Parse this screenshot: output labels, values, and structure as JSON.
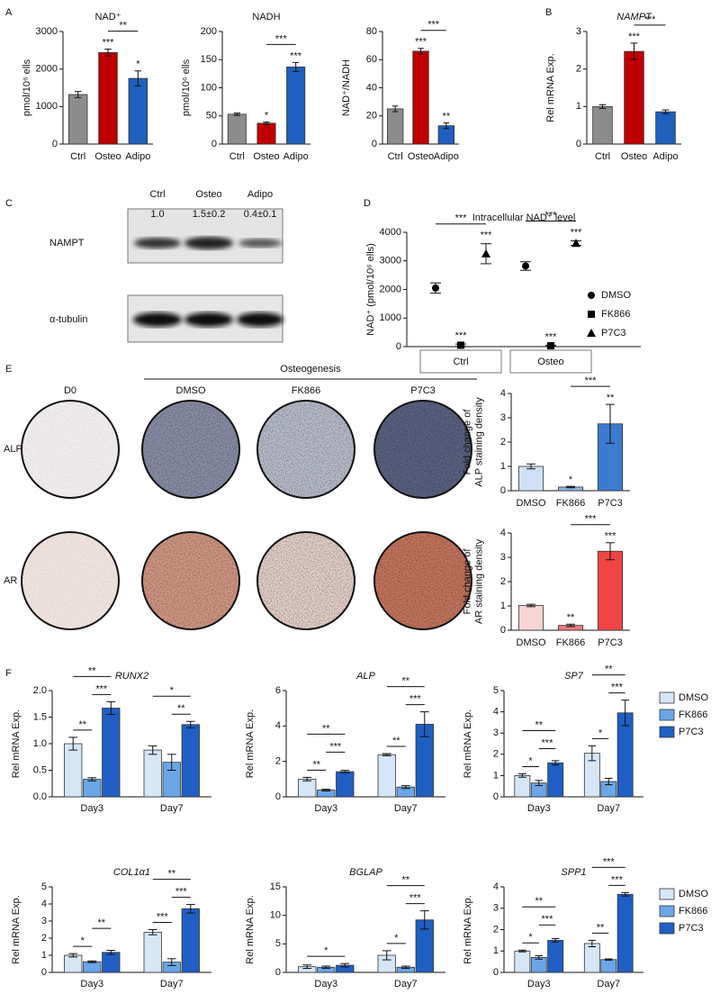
{
  "panels": [
    "A",
    "B",
    "C",
    "D",
    "E",
    "F"
  ],
  "blot": {
    "lanes": [
      "Ctrl",
      "Osteo",
      "Adipo"
    ],
    "quantification": [
      "1.0",
      "1.5±0.2",
      "0.4±0.1"
    ],
    "rows": [
      "NAMPT",
      "α-tubulin"
    ]
  },
  "staining": {
    "group_label": "Osteogenesis",
    "columns": [
      "D0",
      "DMSO",
      "FK866",
      "P7C3"
    ],
    "rows": [
      "ALP",
      "AR"
    ]
  },
  "chart_data": [
    {
      "type": "bar",
      "title": "NAD⁺",
      "y_label": [
        "pmol/10⁶ ells"
      ],
      "categories": [
        "Ctrl",
        "Osteo",
        "Adipo"
      ],
      "values": [
        1320,
        2440,
        1750
      ],
      "errors": [
        80,
        90,
        200
      ],
      "colors": [
        "#8c8c8c",
        "#c00000",
        "#1f5fbf"
      ],
      "ylim": [
        0,
        3000
      ],
      "yticks": [
        0,
        1000,
        2000,
        3000
      ],
      "annotations": [
        {
          "text": "***",
          "over": "Osteo"
        },
        {
          "text": "*",
          "over": "Adipo"
        },
        {
          "text": "**",
          "between": [
            "Osteo",
            "Adipo"
          ]
        }
      ]
    },
    {
      "type": "bar",
      "title": "NADH",
      "y_label": [
        "pmol/10⁶ ells"
      ],
      "categories": [
        "Ctrl",
        "Osteo",
        "Adipo"
      ],
      "values": [
        53,
        37,
        137
      ],
      "errors": [
        2,
        2,
        8
      ],
      "colors": [
        "#8c8c8c",
        "#c00000",
        "#1f5fbf"
      ],
      "ylim": [
        0,
        200
      ],
      "yticks": [
        0,
        50,
        100,
        150,
        200
      ],
      "annotations": [
        {
          "text": "*",
          "over": "Osteo"
        },
        {
          "text": "***",
          "over": "Adipo"
        },
        {
          "text": "***",
          "between": [
            "Osteo",
            "Adipo"
          ]
        }
      ]
    },
    {
      "type": "bar",
      "y_label": [
        "NAD⁺/NADH"
      ],
      "categories": [
        "Ctrl",
        "Osteo",
        "Adipo"
      ],
      "values": [
        25,
        66,
        13
      ],
      "errors": [
        2,
        2,
        2
      ],
      "colors": [
        "#8c8c8c",
        "#c00000",
        "#1f5fbf"
      ],
      "ylim": [
        0,
        80
      ],
      "yticks": [
        0,
        20,
        40,
        60,
        80
      ],
      "annotations": [
        {
          "text": "***",
          "over": "Osteo"
        },
        {
          "text": "**",
          "over": "Adipo"
        },
        {
          "text": "***",
          "between": [
            "Osteo",
            "Adipo"
          ]
        }
      ]
    },
    {
      "type": "bar",
      "title": "NAMPT",
      "italic_title": true,
      "y_label": [
        "Rel mRNA Exp."
      ],
      "categories": [
        "Ctrl",
        "Osteo",
        "Adipo"
      ],
      "values": [
        1.0,
        2.47,
        0.86
      ],
      "errors": [
        0.05,
        0.22,
        0.05
      ],
      "colors": [
        "#8c8c8c",
        "#c00000",
        "#1f5fbf"
      ],
      "ylim": [
        0,
        3
      ],
      "yticks": [
        0,
        1,
        2,
        3
      ],
      "annotations": [
        {
          "text": "***",
          "over": "Osteo"
        },
        {
          "text": "***",
          "between": [
            "Osteo",
            "Adipo"
          ]
        }
      ]
    },
    {
      "type": "dot",
      "title": "Intracellular NAD⁺ level",
      "y_label": [
        "NAD⁺ (pmol/10⁶ ells)"
      ],
      "categories": [
        "Ctrl",
        "Osteo"
      ],
      "ylim": [
        0,
        4000
      ],
      "yticks": [
        0,
        1000,
        2000,
        3000,
        4000
      ],
      "legend": "inside-right",
      "series": [
        {
          "name": "DMSO",
          "marker": "circle",
          "color": "#000000",
          "values": [
            2050,
            2820
          ],
          "errors": [
            180,
            150
          ]
        },
        {
          "name": "FK866",
          "marker": "square",
          "color": "#000000",
          "values": [
            50,
            30
          ],
          "errors": [
            40,
            20
          ]
        },
        {
          "name": "P7C3",
          "marker": "triangle",
          "color": "#000000",
          "values": [
            3250,
            3620
          ],
          "errors": [
            350,
            80
          ]
        }
      ],
      "annotations": [
        {
          "text": "***",
          "group": "Ctrl",
          "over": "FK866"
        },
        {
          "text": "***",
          "group": "Ctrl",
          "over": "P7C3"
        },
        {
          "text": "***",
          "group": "Ctrl",
          "between": [
            "DMSO",
            "P7C3"
          ]
        },
        {
          "text": "***",
          "group": "Osteo",
          "over": "FK866"
        },
        {
          "text": "***",
          "group": "Osteo",
          "over": "P7C3"
        },
        {
          "text": "***",
          "group": "Osteo",
          "between": [
            "DMSO",
            "P7C3"
          ]
        }
      ]
    },
    {
      "type": "bar",
      "y_label": [
        "Fold change of",
        "ALP staining density"
      ],
      "categories": [
        "DMSO",
        "FK866",
        "P7C3"
      ],
      "values": [
        1.0,
        0.15,
        2.75
      ],
      "errors": [
        0.1,
        0.03,
        0.8
      ],
      "colors": [
        "#cfe0f5",
        "#8db6ea",
        "#3d7bd1"
      ],
      "ylim": [
        0,
        4
      ],
      "yticks": [
        0,
        1,
        2,
        3,
        4
      ],
      "annotations": [
        {
          "text": "*",
          "over": "FK866"
        },
        {
          "text": "**",
          "over": "P7C3"
        },
        {
          "text": "***",
          "between": [
            "FK866",
            "P7C3"
          ]
        }
      ]
    },
    {
      "type": "bar",
      "y_label": [
        "Fold change of",
        "AR staining density"
      ],
      "categories": [
        "DMSO",
        "FK866",
        "P7C3"
      ],
      "values": [
        1.02,
        0.2,
        3.25
      ],
      "errors": [
        0.05,
        0.05,
        0.35
      ],
      "colors": [
        "#f9d4d4",
        "#f07a7a",
        "#f04545"
      ],
      "ylim": [
        0,
        4
      ],
      "yticks": [
        0,
        1,
        2,
        3,
        4
      ],
      "annotations": [
        {
          "text": "**",
          "over": "FK866"
        },
        {
          "text": "***",
          "over": "P7C3"
        },
        {
          "text": "***",
          "between": [
            "FK866",
            "P7C3"
          ]
        }
      ]
    },
    {
      "type": "grouped_bar",
      "title": "RUNX2",
      "italic_title": true,
      "y_label": [
        "Rel mRNA Exp."
      ],
      "categories": [
        "Day3",
        "Day7"
      ],
      "ylim": [
        0,
        2
      ],
      "yticks": [
        {
          "value": 0,
          "label": "0.0"
        },
        0.5,
        {
          "value": 1,
          "label": "1.0"
        },
        1.5,
        {
          "value": 2,
          "label": "2.0"
        }
      ],
      "series": [
        {
          "name": "DMSO",
          "color": "#d5e6f7",
          "values": [
            1.0,
            0.88
          ],
          "errors": [
            0.12,
            0.08
          ]
        },
        {
          "name": "FK866",
          "color": "#6aa6e8",
          "values": [
            0.33,
            0.65
          ],
          "errors": [
            0.03,
            0.15
          ]
        },
        {
          "name": "P7C3",
          "color": "#1f5fc4",
          "values": [
            1.67,
            1.36
          ],
          "errors": [
            0.12,
            0.06
          ]
        }
      ],
      "annotations": [
        {
          "text": "**",
          "group": "Day3",
          "between": [
            "DMSO",
            "FK866"
          ]
        },
        {
          "text": "***",
          "group": "Day3",
          "between": [
            "FK866",
            "P7C3"
          ]
        },
        {
          "text": "**",
          "group": "Day3",
          "between": [
            "DMSO",
            "P7C3"
          ]
        },
        {
          "text": "**",
          "group": "Day7",
          "between": [
            "FK866",
            "P7C3"
          ]
        },
        {
          "text": "*",
          "group": "Day7",
          "between": [
            "DMSO",
            "P7C3"
          ]
        }
      ]
    },
    {
      "type": "grouped_bar",
      "title": "ALP",
      "italic_title": true,
      "y_label": [
        "Rel mRNA Exp."
      ],
      "categories": [
        "Day3",
        "Day7"
      ],
      "ylim": [
        0,
        6
      ],
      "yticks": [
        0,
        2,
        4,
        6
      ],
      "series": [
        {
          "name": "DMSO",
          "color": "#d5e6f7",
          "values": [
            1.0,
            2.38
          ],
          "errors": [
            0.1,
            0.06
          ]
        },
        {
          "name": "FK866",
          "color": "#6aa6e8",
          "values": [
            0.38,
            0.55
          ],
          "errors": [
            0.05,
            0.08
          ]
        },
        {
          "name": "P7C3",
          "color": "#1f5fc4",
          "values": [
            1.42,
            4.1
          ],
          "errors": [
            0.07,
            0.7
          ]
        }
      ],
      "annotations": [
        {
          "text": "**",
          "group": "Day3",
          "between": [
            "DMSO",
            "FK866"
          ]
        },
        {
          "text": "***",
          "group": "Day3",
          "between": [
            "FK866",
            "P7C3"
          ]
        },
        {
          "text": "**",
          "group": "Day3",
          "between": [
            "DMSO",
            "P7C3"
          ]
        },
        {
          "text": "**",
          "group": "Day7",
          "between": [
            "DMSO",
            "FK866"
          ]
        },
        {
          "text": "***",
          "group": "Day7",
          "between": [
            "FK866",
            "P7C3"
          ]
        },
        {
          "text": "**",
          "group": "Day7",
          "between": [
            "DMSO",
            "P7C3"
          ]
        }
      ]
    },
    {
      "type": "grouped_bar",
      "title": "SP7",
      "italic_title": true,
      "y_label": [
        "Rel mRNA Exp."
      ],
      "categories": [
        "Day3",
        "Day7"
      ],
      "ylim": [
        0,
        5
      ],
      "yticks": [
        0,
        1,
        2,
        3,
        4,
        5
      ],
      "legend": "right",
      "series": [
        {
          "name": "DMSO",
          "color": "#d5e6f7",
          "values": [
            1.0,
            2.05
          ],
          "errors": [
            0.08,
            0.35
          ]
        },
        {
          "name": "FK866",
          "color": "#6aa6e8",
          "values": [
            0.65,
            0.72
          ],
          "errors": [
            0.12,
            0.15
          ]
        },
        {
          "name": "P7C3",
          "color": "#1f5fc4",
          "values": [
            1.6,
            3.95
          ],
          "errors": [
            0.1,
            0.6
          ]
        }
      ],
      "annotations": [
        {
          "text": "*",
          "group": "Day3",
          "between": [
            "DMSO",
            "FK866"
          ]
        },
        {
          "text": "***",
          "group": "Day3",
          "between": [
            "FK866",
            "P7C3"
          ]
        },
        {
          "text": "**",
          "group": "Day3",
          "between": [
            "DMSO",
            "P7C3"
          ]
        },
        {
          "text": "*",
          "group": "Day7",
          "between": [
            "DMSO",
            "FK866"
          ]
        },
        {
          "text": "***",
          "group": "Day7",
          "between": [
            "FK866",
            "P7C3"
          ]
        },
        {
          "text": "**",
          "group": "Day7",
          "between": [
            "DMSO",
            "P7C3"
          ]
        }
      ]
    },
    {
      "type": "grouped_bar",
      "title": "COL1α1",
      "italic_title": true,
      "y_label": [
        "Rel mRNA Exp."
      ],
      "categories": [
        "Day3",
        "Day7"
      ],
      "ylim": [
        0,
        5
      ],
      "yticks": [
        0,
        1,
        2,
        3,
        4,
        5
      ],
      "series": [
        {
          "name": "DMSO",
          "color": "#d5e6f7",
          "values": [
            1.0,
            2.35
          ],
          "errors": [
            0.1,
            0.15
          ]
        },
        {
          "name": "FK866",
          "color": "#6aa6e8",
          "values": [
            0.62,
            0.6
          ],
          "errors": [
            0.05,
            0.2
          ]
        },
        {
          "name": "P7C3",
          "color": "#1f5fc4",
          "values": [
            1.17,
            3.72
          ],
          "errors": [
            0.12,
            0.25
          ]
        }
      ],
      "annotations": [
        {
          "text": "*",
          "group": "Day3",
          "between": [
            "DMSO",
            "FK866"
          ]
        },
        {
          "text": "**",
          "group": "Day3",
          "between": [
            "FK866",
            "P7C3"
          ]
        },
        {
          "text": "***",
          "group": "Day7",
          "between": [
            "DMSO",
            "FK866"
          ]
        },
        {
          "text": "***",
          "group": "Day7",
          "between": [
            "FK866",
            "P7C3"
          ]
        },
        {
          "text": "**",
          "group": "Day7",
          "between": [
            "DMSO",
            "P7C3"
          ]
        }
      ]
    },
    {
      "type": "grouped_bar",
      "title": "BGLAP",
      "italic_title": true,
      "y_label": [
        "Rel mRNA Exp."
      ],
      "categories": [
        "Day3",
        "Day7"
      ],
      "ylim": [
        0,
        15
      ],
      "yticks": [
        0,
        5,
        10,
        15
      ],
      "series": [
        {
          "name": "DMSO",
          "color": "#d5e6f7",
          "values": [
            1.0,
            3.0
          ],
          "errors": [
            0.3,
            0.8
          ]
        },
        {
          "name": "FK866",
          "color": "#6aa6e8",
          "values": [
            0.9,
            0.9
          ],
          "errors": [
            0.2,
            0.2
          ]
        },
        {
          "name": "P7C3",
          "color": "#1f5fc4",
          "values": [
            1.25,
            9.2
          ],
          "errors": [
            0.3,
            1.6
          ]
        }
      ],
      "annotations": [
        {
          "text": "*",
          "group": "Day3",
          "between": [
            "DMSO",
            "P7C3"
          ]
        },
        {
          "text": "*",
          "group": "Day7",
          "between": [
            "DMSO",
            "FK866"
          ]
        },
        {
          "text": "***",
          "group": "Day7",
          "between": [
            "FK866",
            "P7C3"
          ]
        },
        {
          "text": "**",
          "group": "Day7",
          "between": [
            "DMSO",
            "P7C3"
          ]
        }
      ]
    },
    {
      "type": "grouped_bar",
      "title": "SPP1",
      "italic_title": true,
      "y_label": [
        "Rel mRNA Exp."
      ],
      "categories": [
        "Day3",
        "Day7"
      ],
      "ylim": [
        0,
        4
      ],
      "yticks": [
        0,
        1,
        2,
        3,
        4
      ],
      "legend": "right",
      "series": [
        {
          "name": "DMSO",
          "color": "#d5e6f7",
          "values": [
            1.0,
            1.35
          ],
          "errors": [
            0.04,
            0.15
          ]
        },
        {
          "name": "FK866",
          "color": "#6aa6e8",
          "values": [
            0.7,
            0.6
          ],
          "errors": [
            0.08,
            0.03
          ]
        },
        {
          "name": "P7C3",
          "color": "#1f5fc4",
          "values": [
            1.5,
            3.65
          ],
          "errors": [
            0.08,
            0.08
          ]
        }
      ],
      "annotations": [
        {
          "text": "*",
          "group": "Day3",
          "between": [
            "DMSO",
            "FK866"
          ]
        },
        {
          "text": "***",
          "group": "Day3",
          "between": [
            "FK866",
            "P7C3"
          ]
        },
        {
          "text": "**",
          "group": "Day3",
          "between": [
            "DMSO",
            "P7C3"
          ]
        },
        {
          "text": "**",
          "group": "Day7",
          "between": [
            "DMSO",
            "FK866"
          ]
        },
        {
          "text": "***",
          "group": "Day7",
          "between": [
            "FK866",
            "P7C3"
          ]
        },
        {
          "text": "***",
          "group": "Day7",
          "between": [
            "DMSO",
            "P7C3"
          ]
        }
      ]
    }
  ]
}
